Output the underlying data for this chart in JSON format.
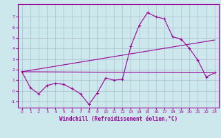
{
  "xlabel": "Windchill (Refroidissement éolien,°C)",
  "background_color": "#cce8ec",
  "line_color": "#990099",
  "grid_color": "#aabbcc",
  "x_ticks": [
    0,
    1,
    2,
    3,
    4,
    5,
    6,
    7,
    8,
    9,
    10,
    11,
    12,
    13,
    14,
    15,
    16,
    17,
    18,
    19,
    20,
    21,
    22,
    23
  ],
  "y_ticks": [
    -1,
    0,
    1,
    2,
    3,
    4,
    5,
    6,
    7
  ],
  "xlim": [
    -0.5,
    23.5
  ],
  "ylim": [
    -1.6,
    8.2
  ],
  "series1_x": [
    0,
    1,
    2,
    3,
    4,
    5,
    6,
    7,
    8,
    9,
    10,
    11,
    12,
    13,
    14,
    15,
    16,
    17,
    18,
    19,
    20,
    21,
    22,
    23
  ],
  "series1_y": [
    1.8,
    0.3,
    -0.3,
    0.5,
    0.7,
    0.6,
    0.2,
    -0.3,
    -1.3,
    -0.2,
    1.2,
    1.0,
    1.1,
    4.2,
    6.2,
    7.4,
    7.0,
    6.8,
    5.1,
    4.9,
    4.0,
    2.9,
    1.3,
    1.7
  ],
  "line1_x": [
    0,
    23
  ],
  "line1_y": [
    1.8,
    1.7
  ],
  "line2_x": [
    0,
    23
  ],
  "line2_y": [
    1.8,
    4.8
  ]
}
